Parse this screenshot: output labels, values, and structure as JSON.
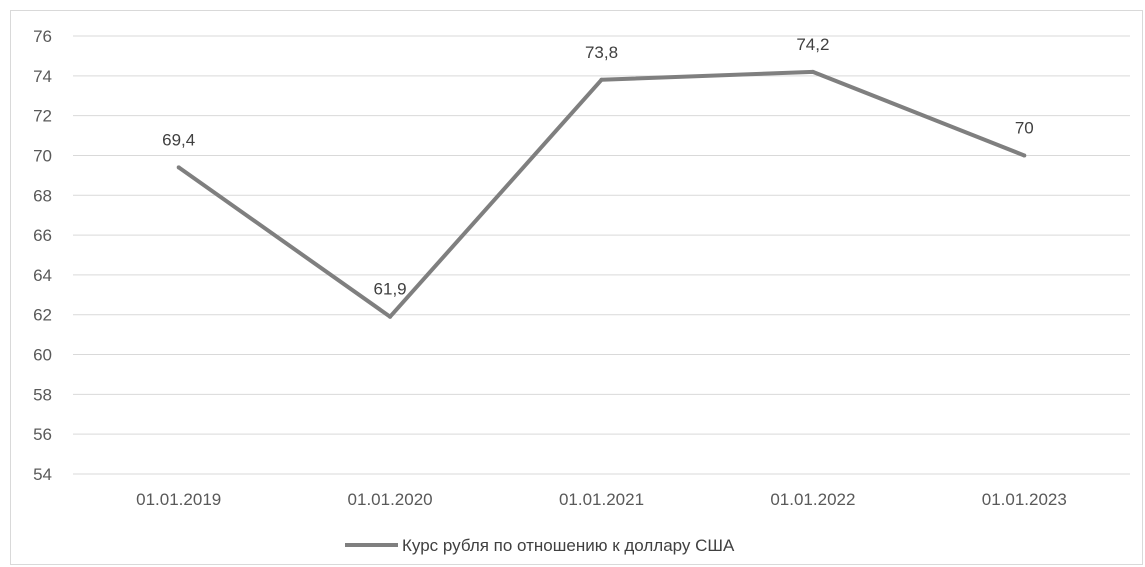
{
  "chart_data": {
    "type": "line",
    "title": "",
    "xlabel": "",
    "ylabel": "",
    "categories": [
      "01.01.2019",
      "01.01.2020",
      "01.01.2021",
      "01.01.2022",
      "01.01.2023"
    ],
    "series": [
      {
        "name": "Курс рубля по отношению к доллару США",
        "values": [
          69.4,
          61.9,
          73.8,
          74.2,
          70
        ],
        "labels": [
          "69,4",
          "61,9",
          "73,8",
          "74,2",
          "70"
        ],
        "color": "#7f7f7f"
      }
    ],
    "ylim": [
      54,
      76
    ],
    "yticks": [
      76,
      74,
      72,
      70,
      68,
      66,
      64,
      62,
      60,
      58,
      56,
      54
    ],
    "grid": true,
    "legend": "bottom"
  }
}
